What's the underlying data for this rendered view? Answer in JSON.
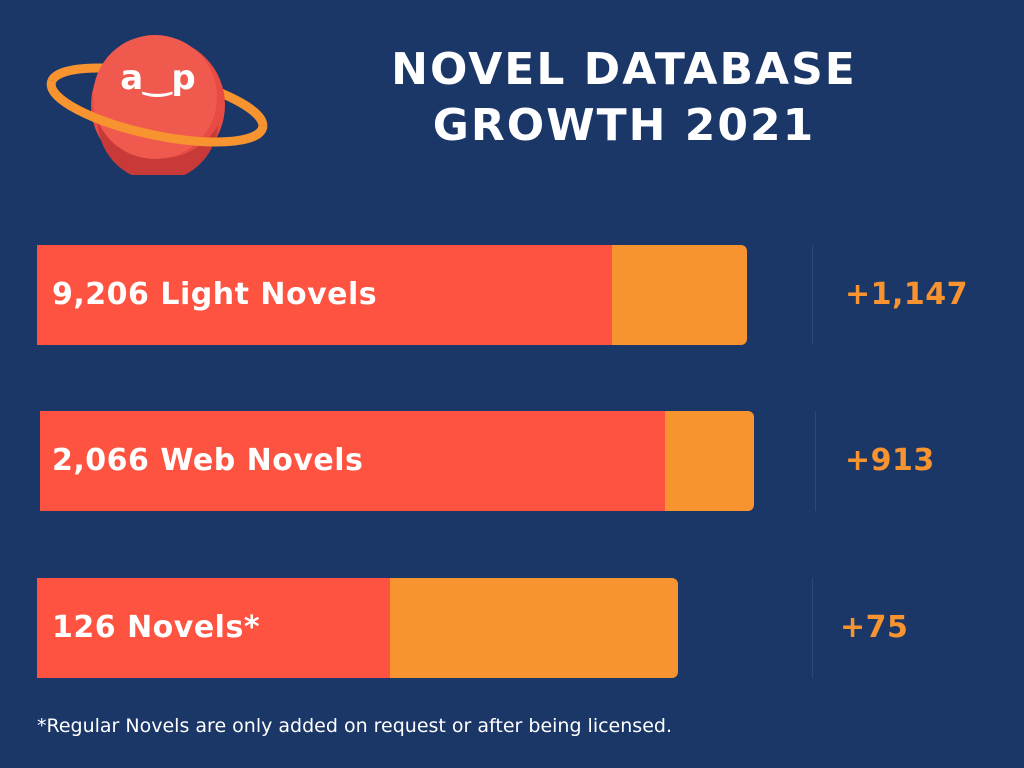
{
  "header": {
    "title_line1": "NOVEL DATABASE",
    "title_line2": "GROWTH 2021"
  },
  "logo": {
    "text": "a‿p",
    "icon": "planet-logo-icon"
  },
  "colors": {
    "background": "#1b3768",
    "total_bar": "#fe5340",
    "growth_bar": "#f7942f",
    "growth_text": "#f7942f",
    "text": "#ffffff"
  },
  "chart_data": {
    "type": "bar",
    "orientation": "horizontal",
    "stacked": true,
    "categories": [
      "9,206 Light Novels",
      "2,066 Web Novels",
      "126 Novels*"
    ],
    "series": [
      {
        "name": "",
        "values": [
          9206,
          2066,
          126
        ]
      },
      {
        "name": "",
        "values": [
          1147,
          913,
          75
        ]
      }
    ],
    "growth_labels": [
      "+1,147",
      "+913",
      "+75"
    ],
    "bars": [
      {
        "label": "9,206 Light Novels",
        "growth": "+1,147",
        "growth_share": 0.19
      },
      {
        "label": "2,066 Web Novels",
        "growth": "+913",
        "growth_share": 0.125
      },
      {
        "label": "126 Novels*",
        "growth": "+75",
        "growth_share": 0.45
      }
    ],
    "title": "NOVEL DATABASE GROWTH 2021",
    "xlabel": "",
    "ylabel": "",
    "grid": false,
    "legend": "none"
  },
  "footnote": "*Regular Novels are only added on request or after being licensed."
}
